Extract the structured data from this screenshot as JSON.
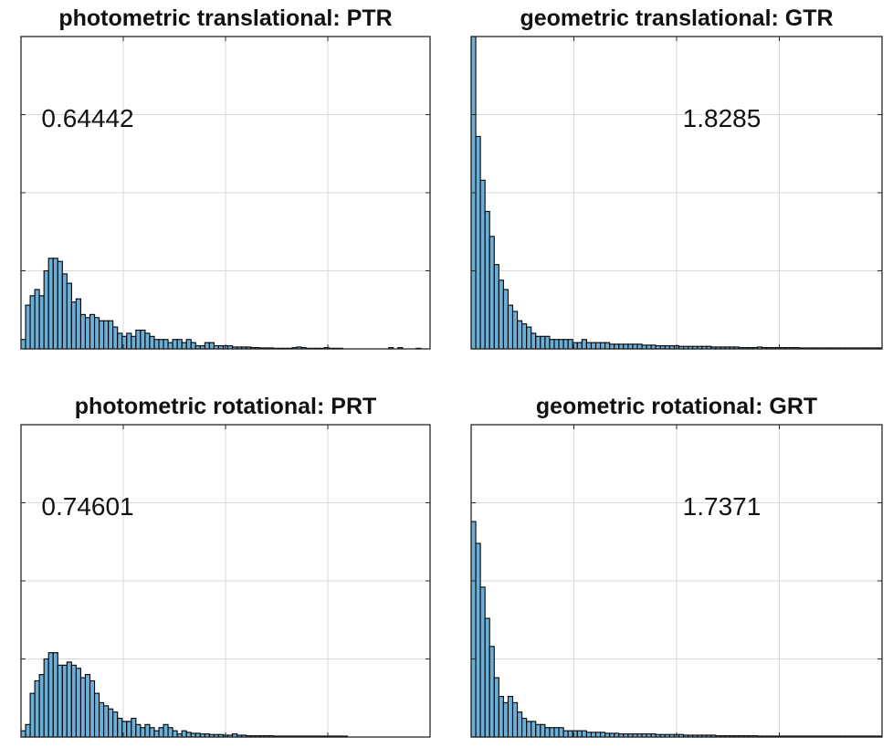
{
  "style": {
    "bar_fill": "#6baed6",
    "bar_edge": "#000000",
    "grid": "#d9d9d9",
    "axes": "#262626"
  },
  "chart_data": [
    {
      "type": "bar",
      "title": "photometric translational: PTR",
      "annotation": "0.64442",
      "grid": true,
      "values": [
        3,
        14,
        17,
        19,
        17,
        25,
        29,
        29,
        28,
        24,
        21,
        15,
        16,
        11,
        10,
        11,
        10,
        9,
        9,
        9,
        7,
        5,
        4,
        5,
        4,
        6,
        6,
        5,
        4,
        3,
        3,
        3,
        2,
        3,
        3,
        2,
        3,
        2,
        1,
        1,
        2,
        2,
        1,
        1,
        1,
        1,
        0.6,
        0.6,
        0.6,
        0.6,
        0.4,
        0.4,
        0.3,
        0.3,
        0.3,
        0.2,
        0.2,
        0.2,
        0.2,
        0.4,
        0.6,
        0.4,
        0.2,
        0.2,
        0.2,
        0.2,
        0.4,
        0.2,
        0.2,
        0.2,
        0,
        0,
        0,
        0,
        0,
        0,
        0,
        0,
        0,
        0,
        0.4,
        0,
        0.4,
        0,
        0,
        0,
        0.2,
        0,
        0
      ]
    },
    {
      "type": "bar",
      "title": "geometric translational: GTR",
      "annotation": "1.8285",
      "grid": true,
      "values": [
        100,
        68,
        54,
        44,
        36,
        27,
        22,
        19,
        14,
        12,
        9,
        8,
        7,
        5,
        4,
        4,
        4,
        3,
        3,
        3,
        3,
        3,
        2,
        2,
        3,
        2,
        2,
        2,
        2,
        2,
        1.5,
        1.5,
        1.5,
        1.5,
        1.5,
        1.5,
        1.5,
        1.2,
        1.2,
        1.2,
        1,
        1,
        1,
        1,
        1,
        0.8,
        0.8,
        0.8,
        0.8,
        0.8,
        0.8,
        0.8,
        0.6,
        0.6,
        0.6,
        0.6,
        0.6,
        0.6,
        0.4,
        0.4,
        0.4,
        0.4,
        0.6,
        0.4,
        0.4,
        0.4,
        0.4,
        0.4,
        0.4,
        0.4,
        0.4,
        0.3,
        0.3,
        0.3,
        0.3,
        0.3,
        0.3,
        0.3,
        0.3,
        0.3,
        0.3,
        0.3,
        0.3,
        0.3,
        0.3,
        0.3,
        0.3,
        0.3,
        0.3
      ]
    },
    {
      "type": "bar",
      "title": "photometric rotational: PRT",
      "annotation": "0.74601",
      "grid": true,
      "values": [
        2,
        4,
        14,
        18,
        20,
        25,
        27,
        27,
        23,
        23,
        24,
        23,
        22,
        19,
        20,
        18,
        14,
        11,
        10,
        9,
        8,
        6,
        5,
        5,
        6,
        4,
        3,
        4,
        3,
        2,
        3,
        4,
        3,
        2,
        1,
        2,
        1.5,
        1.2,
        1.2,
        1,
        1,
        0.8,
        0.8,
        0.8,
        0.6,
        0.6,
        1,
        0.6,
        0.6,
        0.4,
        0.4,
        0.4,
        0.4,
        0.4,
        0.4,
        0.3,
        0.3,
        0.3,
        0.3,
        0.3,
        0.3,
        0.3,
        0.3,
        0.3,
        0.3,
        0.3,
        0.3,
        0.3,
        0.3,
        0.3,
        0.3,
        0,
        0,
        0,
        0,
        0,
        0,
        0,
        0,
        0,
        0,
        0,
        0,
        0,
        0,
        0,
        0,
        0,
        0
      ]
    },
    {
      "type": "bar",
      "title": "geometric rotational: GRT",
      "annotation": "1.7371",
      "grid": true,
      "values": [
        69,
        62,
        48,
        38,
        29,
        19,
        13,
        11,
        13,
        11,
        8,
        6,
        5,
        5,
        4,
        4,
        3,
        3,
        3,
        3,
        2,
        2,
        2,
        2,
        2,
        1.5,
        1.5,
        1.5,
        1.5,
        1.2,
        1.2,
        1.2,
        1,
        1,
        1,
        1,
        1,
        1,
        1,
        1,
        0.8,
        0.8,
        0.8,
        0.8,
        0.8,
        0.8,
        0.6,
        0.6,
        0.6,
        0.6,
        0.6,
        0.6,
        0.6,
        0.4,
        0.4,
        0.4,
        0.4,
        0.4,
        0.4,
        0.4,
        0.4,
        0.4,
        0.3,
        0.3,
        0.3,
        0.3,
        0.3,
        0.3,
        0.3,
        0.3,
        0.3,
        0.3,
        0.3,
        0.3,
        0.3,
        0.3,
        0.3,
        0.3,
        0.3,
        0.3,
        0.3,
        0.3,
        0.3,
        0.3,
        0.3,
        0.3,
        0.3,
        0.3,
        0.3
      ]
    }
  ]
}
